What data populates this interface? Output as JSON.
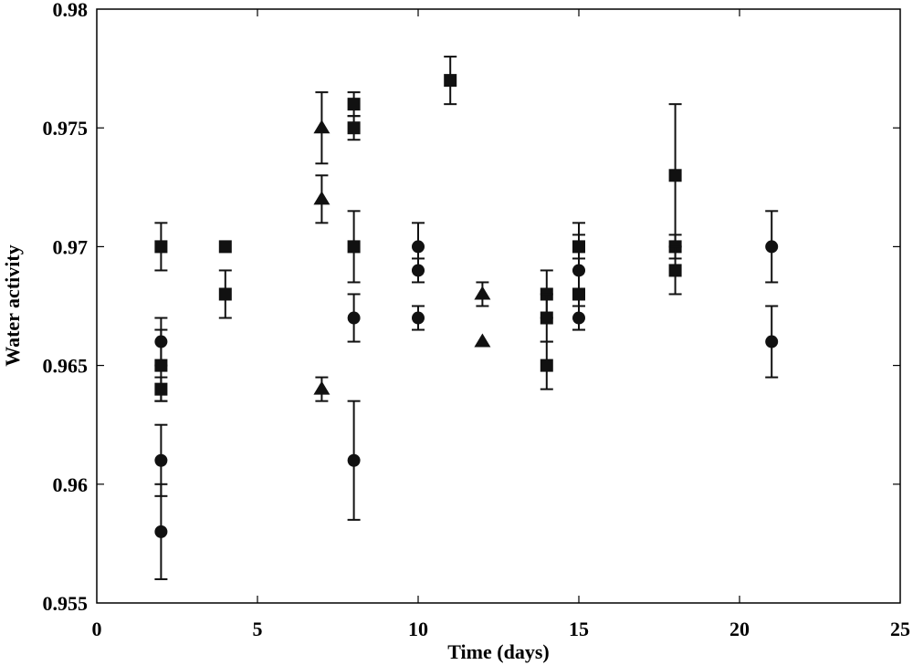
{
  "chart_data": {
    "type": "scatter",
    "title": "",
    "xlabel": "Time (days)",
    "ylabel": "Water activity",
    "xlim": [
      0,
      25
    ],
    "ylim": [
      0.955,
      0.98
    ],
    "xticks": [
      "0",
      "5",
      "10",
      "15",
      "20",
      "25"
    ],
    "yticks": [
      "0.955",
      "0.96",
      "0.965",
      "0.97",
      "0.975",
      "0.98"
    ],
    "grid": false,
    "legend": "none",
    "marker_color": "#111111",
    "series": [
      {
        "marker": "circle",
        "points": [
          {
            "x": 2,
            "y": 0.966,
            "err": 0.001
          },
          {
            "x": 2,
            "y": 0.961,
            "err": 0.0015
          },
          {
            "x": 2,
            "y": 0.958,
            "err": 0.002
          },
          {
            "x": 8,
            "y": 0.967,
            "err": 0.001
          },
          {
            "x": 8,
            "y": 0.961,
            "err": 0.0025
          },
          {
            "x": 10,
            "y": 0.97,
            "err": 0.001
          },
          {
            "x": 10,
            "y": 0.969,
            "err": 0.0005
          },
          {
            "x": 10,
            "y": 0.967,
            "err": 0.0005
          },
          {
            "x": 15,
            "y": 0.969,
            "err": 0.0015
          },
          {
            "x": 15,
            "y": 0.967,
            "err": 0.0005
          },
          {
            "x": 21,
            "y": 0.97,
            "err": 0.0015
          },
          {
            "x": 21,
            "y": 0.966,
            "err": 0.0015
          }
        ]
      },
      {
        "marker": "square",
        "points": [
          {
            "x": 2,
            "y": 0.97,
            "err": 0.001
          },
          {
            "x": 2,
            "y": 0.965,
            "err": 0.0015
          },
          {
            "x": 2,
            "y": 0.964,
            "err": 0.0005
          },
          {
            "x": 4,
            "y": 0.97,
            "err": 0
          },
          {
            "x": 4,
            "y": 0.968,
            "err": 0.001
          },
          {
            "x": 8,
            "y": 0.976,
            "err": 0.0005
          },
          {
            "x": 8,
            "y": 0.975,
            "err": 0.0005
          },
          {
            "x": 8,
            "y": 0.97,
            "err": 0.0015
          },
          {
            "x": 11,
            "y": 0.977,
            "err": 0.001
          },
          {
            "x": 14,
            "y": 0.968,
            "err": 0.001
          },
          {
            "x": 14,
            "y": 0.967,
            "err": 0.001
          },
          {
            "x": 14,
            "y": 0.965,
            "err": 0.001
          },
          {
            "x": 15,
            "y": 0.97,
            "err": 0.001
          },
          {
            "x": 15,
            "y": 0.968,
            "err": 0.0015
          },
          {
            "x": 18,
            "y": 0.973,
            "err": 0.003
          },
          {
            "x": 18,
            "y": 0.97,
            "err": 0.0005
          },
          {
            "x": 18,
            "y": 0.969,
            "err": 0.001
          }
        ]
      },
      {
        "marker": "triangle",
        "points": [
          {
            "x": 7,
            "y": 0.975,
            "err": 0.0015
          },
          {
            "x": 7,
            "y": 0.972,
            "err": 0.001
          },
          {
            "x": 7,
            "y": 0.964,
            "err": 0.0005
          },
          {
            "x": 12,
            "y": 0.968,
            "err": 0.0005
          },
          {
            "x": 12,
            "y": 0.966,
            "err": 0
          }
        ]
      }
    ]
  }
}
